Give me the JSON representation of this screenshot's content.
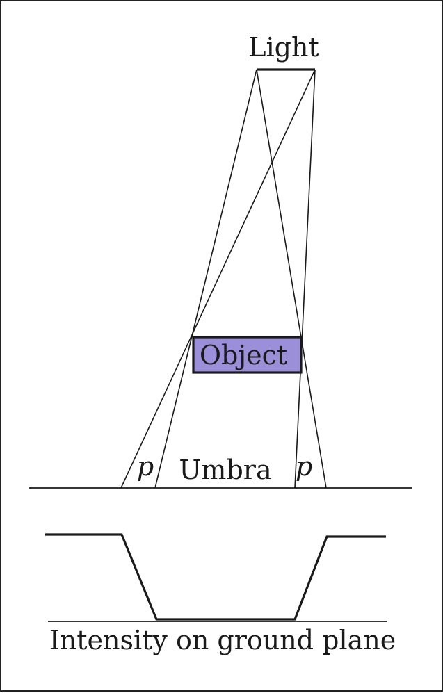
{
  "labels": {
    "light": "Light",
    "object": "Object",
    "umbra": "Umbra",
    "penumbra_left": "p",
    "penumbra_right": "p",
    "intensity_caption": "Intensity on ground plane"
  },
  "colors": {
    "object_fill": "#9b8fd9",
    "line": "#1a1a1a",
    "background": "#ffffff"
  }
}
